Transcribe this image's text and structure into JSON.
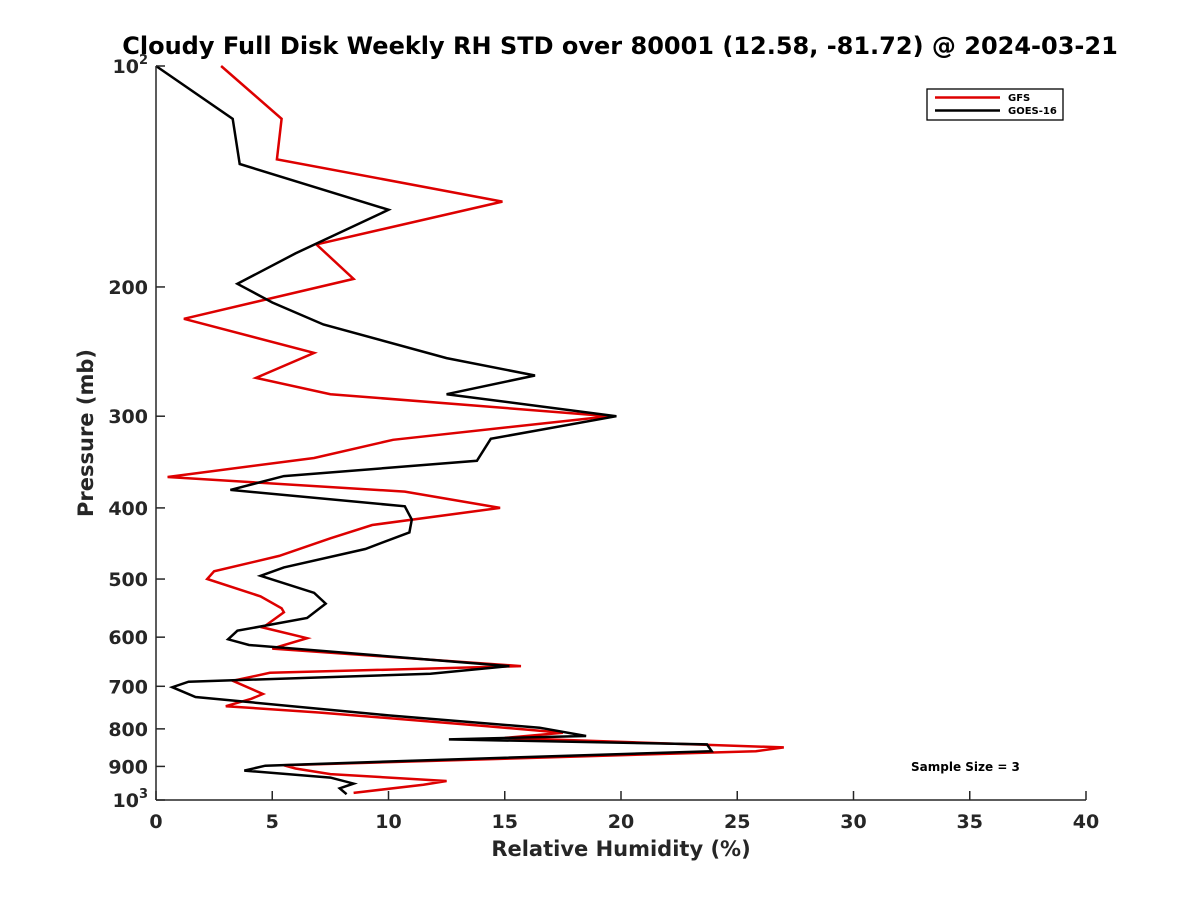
{
  "chart_data": {
    "type": "line",
    "title": "Cloudy Full Disk Weekly RH STD over 80001 (12.58, -81.72) @ 2024-03-21",
    "xlabel": "Relative Humidity (%)",
    "ylabel": "Pressure (mb)",
    "xlim": [
      0,
      40
    ],
    "ylim": [
      100,
      1000
    ],
    "yscale": "log",
    "y_reversed": true,
    "grid": false,
    "legend_position": "top-right",
    "x_ticks": [
      "0",
      "5",
      "10",
      "15",
      "20",
      "25",
      "30",
      "35",
      "40"
    ],
    "x_tick_values": [
      0,
      5,
      10,
      15,
      20,
      25,
      30,
      35,
      40
    ],
    "y_ticks": [
      {
        "value": 100,
        "base": "10",
        "exp": "2"
      },
      {
        "value": 200,
        "base": "200",
        "exp": ""
      },
      {
        "value": 300,
        "base": "300",
        "exp": ""
      },
      {
        "value": 400,
        "base": "400",
        "exp": ""
      },
      {
        "value": 500,
        "base": "500",
        "exp": ""
      },
      {
        "value": 600,
        "base": "600",
        "exp": ""
      },
      {
        "value": 700,
        "base": "700",
        "exp": ""
      },
      {
        "value": 800,
        "base": "800",
        "exp": ""
      },
      {
        "value": 900,
        "base": "900",
        "exp": ""
      },
      {
        "value": 1000,
        "base": "10",
        "exp": "3"
      }
    ],
    "annotation": "Sample Size = 3",
    "series": [
      {
        "name": "GFS",
        "color": "#dd0000",
        "points": [
          [
            2.8,
            100
          ],
          [
            5.4,
            118
          ],
          [
            5.2,
            134
          ],
          [
            14.9,
            153
          ],
          [
            6.9,
            175
          ],
          [
            8.5,
            195
          ],
          [
            1.2,
            221
          ],
          [
            6.8,
            246
          ],
          [
            4.3,
            266
          ],
          [
            7.5,
            280
          ],
          [
            19.5,
            300
          ],
          [
            10.2,
            323
          ],
          [
            6.8,
            342
          ],
          [
            0.5,
            363
          ],
          [
            10.7,
            380
          ],
          [
            14.8,
            400
          ],
          [
            9.3,
            422
          ],
          [
            7.5,
            440
          ],
          [
            5.3,
            465
          ],
          [
            2.5,
            488
          ],
          [
            2.2,
            500
          ],
          [
            4.5,
            528
          ],
          [
            5.4,
            548
          ],
          [
            5.5,
            555
          ],
          [
            4.6,
            582
          ],
          [
            6.5,
            602
          ],
          [
            5.0,
            622
          ],
          [
            15.7,
            657
          ],
          [
            4.9,
            671
          ],
          [
            3.3,
            688
          ],
          [
            4.6,
            717
          ],
          [
            4.1,
            728
          ],
          [
            3.0,
            745
          ],
          [
            7.0,
            760
          ],
          [
            14.0,
            792
          ],
          [
            17.5,
            810
          ],
          [
            15.0,
            823
          ],
          [
            27.0,
            848
          ],
          [
            25.8,
            858
          ],
          [
            5.5,
            897
          ],
          [
            6.0,
            906
          ],
          [
            7.5,
            922
          ],
          [
            12.5,
            942
          ],
          [
            11.5,
            953
          ],
          [
            8.5,
            978
          ]
        ]
      },
      {
        "name": "GOES-16",
        "color": "#000000",
        "points": [
          [
            0.0,
            100
          ],
          [
            3.3,
            118
          ],
          [
            3.6,
            136
          ],
          [
            10.0,
            157
          ],
          [
            6.0,
            180
          ],
          [
            3.5,
            198
          ],
          [
            5.0,
            210
          ],
          [
            7.2,
            225
          ],
          [
            12.5,
            250
          ],
          [
            16.3,
            264
          ],
          [
            12.5,
            280
          ],
          [
            19.8,
            300
          ],
          [
            14.4,
            322
          ],
          [
            13.8,
            345
          ],
          [
            5.5,
            362
          ],
          [
            3.2,
            378
          ],
          [
            10.7,
            398
          ],
          [
            11.0,
            415
          ],
          [
            10.9,
            432
          ],
          [
            9.0,
            455
          ],
          [
            5.5,
            482
          ],
          [
            4.5,
            495
          ],
          [
            6.8,
            522
          ],
          [
            7.3,
            540
          ],
          [
            6.5,
            565
          ],
          [
            3.5,
            588
          ],
          [
            3.1,
            604
          ],
          [
            4.0,
            615
          ],
          [
            15.2,
            657
          ],
          [
            11.8,
            673
          ],
          [
            1.4,
            690
          ],
          [
            0.7,
            702
          ],
          [
            1.7,
            724
          ],
          [
            10.0,
            767
          ],
          [
            16.5,
            797
          ],
          [
            18.5,
            818
          ],
          [
            12.6,
            827
          ],
          [
            23.7,
            840
          ],
          [
            23.9,
            858
          ],
          [
            10.5,
            885
          ],
          [
            4.7,
            898
          ],
          [
            3.8,
            912
          ],
          [
            7.5,
            932
          ],
          [
            8.5,
            950
          ],
          [
            7.9,
            964
          ],
          [
            8.2,
            982
          ]
        ]
      }
    ]
  }
}
